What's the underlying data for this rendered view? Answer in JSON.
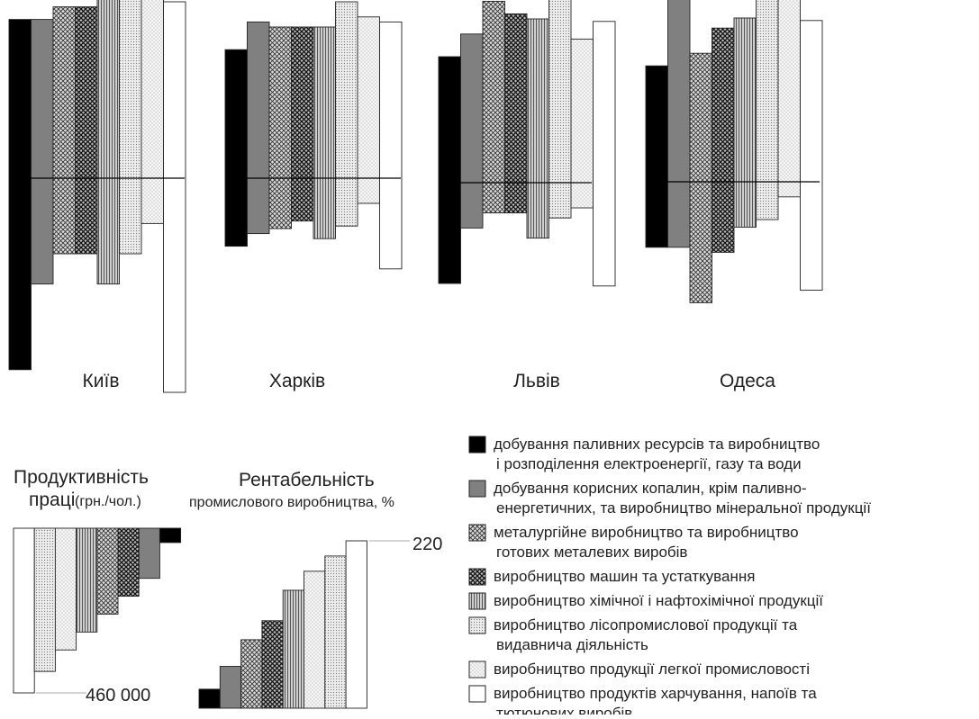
{
  "fills": {
    "black": "#000000",
    "dark_gray": "#808080",
    "crosshatch_light": "crosshatch-light",
    "crosshatch_dark": "crosshatch-dark",
    "vertical_lines": "vertical-lines",
    "fine_dots": "fine-dots",
    "sparse_dots": "sparse-dots",
    "white": "#ffffff"
  },
  "legend": {
    "items": [
      {
        "lines": [
          "добування паливних ресурсів та виробництво",
          "і розподілення електроенергії, газу та води"
        ],
        "fill": "black"
      },
      {
        "lines": [
          "добування корисних копалин, крім паливно-",
          "енергетичних, та виробництво мінеральної продукції"
        ],
        "fill": "dark_gray"
      },
      {
        "lines": [
          "металургійне виробництво та виробництво",
          "готових металевих виробів"
        ],
        "fill": "crosshatch_light"
      },
      {
        "lines": [
          "виробництво машин та устаткування"
        ],
        "fill": "crosshatch_dark"
      },
      {
        "lines": [
          "виробництво хімічної і нафтохімічної продукції"
        ],
        "fill": "vertical_lines"
      },
      {
        "lines": [
          "виробництво лісопромислової продукції та",
          "видавнича діяльність"
        ],
        "fill": "fine_dots"
      },
      {
        "lines": [
          "виробництво продукції легкої промисловості"
        ],
        "fill": "sparse_dots"
      },
      {
        "lines": [
          "виробництво продуктів харчування, напоїв та",
          "тютюнових виробів"
        ],
        "fill": "white"
      }
    ]
  },
  "chart_data": [
    {
      "type": "bar",
      "subtype": "diverging-bars-per-city",
      "cities": [
        {
          "name": "Київ",
          "bars": [
            {
              "up": 63,
              "down": 76
            },
            {
              "up": 63,
              "down": 42
            },
            {
              "up": 68,
              "down": 30
            },
            {
              "up": 68,
              "down": 30
            },
            {
              "up": 72,
              "down": 42
            },
            {
              "up": 80,
              "down": 30
            },
            {
              "up": 73,
              "down": 18
            },
            {
              "up": 70,
              "down": 85
            }
          ]
        },
        {
          "name": "Харків",
          "bars": [
            {
              "up": 51,
              "down": 27
            },
            {
              "up": 62,
              "down": 22
            },
            {
              "up": 60,
              "down": 20
            },
            {
              "up": 60,
              "down": 17
            },
            {
              "up": 60,
              "down": 24
            },
            {
              "up": 70,
              "down": 19
            },
            {
              "up": 64,
              "down": 10
            },
            {
              "up": 62,
              "down": 36
            }
          ]
        },
        {
          "name": "Львів",
          "bars": [
            {
              "up": 50,
              "down": 40
            },
            {
              "up": 59,
              "down": 18
            },
            {
              "up": 72,
              "down": 12
            },
            {
              "up": 67,
              "down": 12
            },
            {
              "up": 65,
              "down": 22
            },
            {
              "up": 84,
              "down": 14
            },
            {
              "up": 57,
              "down": 10
            },
            {
              "up": 64,
              "down": 41
            }
          ]
        },
        {
          "name": "Одеса",
          "bars": [
            {
              "up": 46,
              "down": 26
            },
            {
              "up": 81,
              "down": 26
            },
            {
              "up": 51,
              "down": 48
            },
            {
              "up": 61,
              "down": 28
            },
            {
              "up": 65,
              "down": 18
            },
            {
              "up": 79,
              "down": 15
            },
            {
              "up": 80,
              "down": 6
            },
            {
              "up": 64,
              "down": 43
            }
          ]
        }
      ]
    },
    {
      "type": "bar",
      "title_lines": [
        "Продуктивність",
        "праці"
      ],
      "title_unit": "(грн./чол.)",
      "max_label": "460 000",
      "values": [
        460000,
        400000,
        340000,
        290000,
        240000,
        190000,
        140000,
        40000
      ],
      "series_fill_order": [
        "white",
        "fine_dots",
        "sparse_dots",
        "vertical_lines",
        "crosshatch_light",
        "crosshatch_dark",
        "dark_gray",
        "black"
      ]
    },
    {
      "type": "bar",
      "title_lines": [
        "Рентабельність",
        "промислового виробництва, %"
      ],
      "max_label": "220",
      "values": [
        25,
        55,
        90,
        115,
        155,
        180,
        200,
        220
      ],
      "series_fill_order": [
        "black",
        "dark_gray",
        "crosshatch_light",
        "crosshatch_dark",
        "vertical_lines",
        "sparse_dots",
        "fine_dots",
        "white"
      ]
    }
  ]
}
